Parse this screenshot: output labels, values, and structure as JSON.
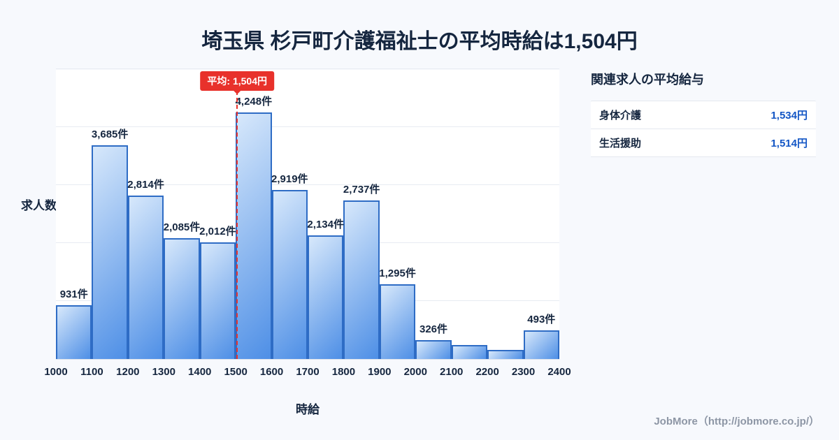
{
  "title": "埼玉県 杉戸町介護福祉士の平均時給は1,504円",
  "chart_data": {
    "type": "bar",
    "title": "埼玉県 杉戸町介護福祉士の平均時給は1,504円",
    "xlabel": "時給",
    "ylabel": "求人数",
    "x_ticks": [
      1000,
      1100,
      1200,
      1300,
      1400,
      1500,
      1600,
      1700,
      1800,
      1900,
      2000,
      2100,
      2200,
      2300,
      2400
    ],
    "ylim": [
      0,
      5000
    ],
    "grid_step": 1000,
    "bars": [
      {
        "bin": "1000-1100",
        "value": 931,
        "label": "931件"
      },
      {
        "bin": "1100-1200",
        "value": 3685,
        "label": "3,685件"
      },
      {
        "bin": "1200-1300",
        "value": 2814,
        "label": "2,814件"
      },
      {
        "bin": "1300-1400",
        "value": 2085,
        "label": "2,085件"
      },
      {
        "bin": "1400-1500",
        "value": 2012,
        "label": "2,012件"
      },
      {
        "bin": "1500-1600",
        "value": 4248,
        "label": "4,248件"
      },
      {
        "bin": "1600-1700",
        "value": 2919,
        "label": "2,919件"
      },
      {
        "bin": "1700-1800",
        "value": 2134,
        "label": "2,134件"
      },
      {
        "bin": "1800-1900",
        "value": 2737,
        "label": "2,737件"
      },
      {
        "bin": "1900-2000",
        "value": 1295,
        "label": "1,295件"
      },
      {
        "bin": "2000-2100",
        "value": 326,
        "label": "326件"
      },
      {
        "bin": "2100-2200",
        "value": 240,
        "label": ""
      },
      {
        "bin": "2200-2300",
        "value": 160,
        "label": ""
      },
      {
        "bin": "2300-2400",
        "value": 493,
        "label": "493件"
      }
    ],
    "average": {
      "value": 1504,
      "label": "平均: 1,504円"
    },
    "colors": {
      "bar_light": "#d7e8fb",
      "bar_dark": "#4e8fe6",
      "bar_border": "#2e6cc5",
      "average_red": "#e8312b",
      "value_blue": "#1356c5",
      "navy": "#15263f",
      "background": "#f7f9fd"
    }
  },
  "side_panel": {
    "title": "関連求人の平均給与",
    "rows": [
      {
        "label": "身体介護",
        "value": "1,534円"
      },
      {
        "label": "生活援助",
        "value": "1,514円"
      }
    ]
  },
  "footer": {
    "credit": "JobMore（http://jobmore.co.jp/）"
  }
}
